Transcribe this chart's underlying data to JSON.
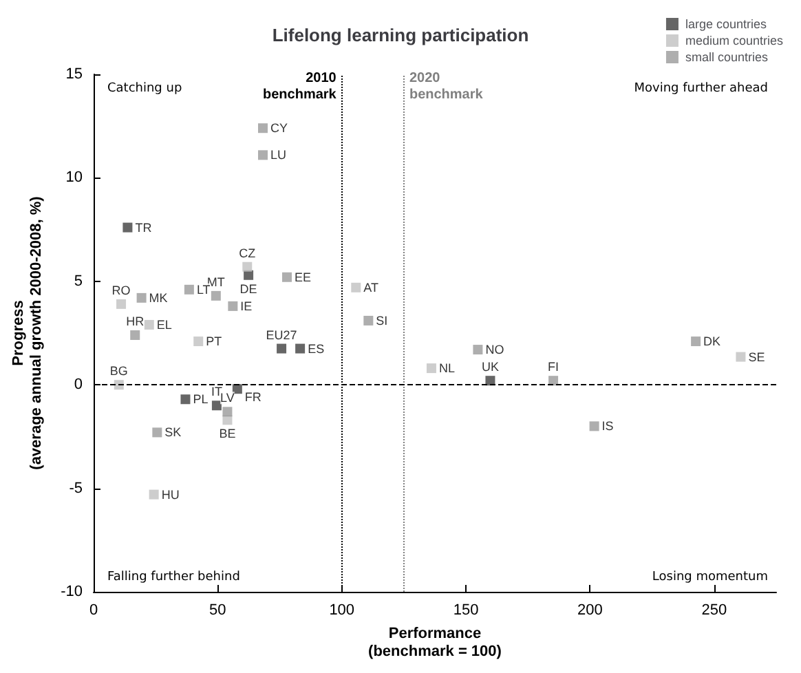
{
  "chart_data": {
    "type": "scatter",
    "title": "Lifelong learning participation",
    "xlabel": "Performance\n(benchmark = 100)",
    "ylabel": "Progress\n(average annual growth 2000-2008, %)",
    "xlim": [
      0,
      275
    ],
    "xticks": [
      0,
      50,
      100,
      150,
      200,
      250
    ],
    "ylim": [
      -10,
      15
    ],
    "yticks": [
      -10,
      -5,
      0,
      5,
      10,
      15
    ],
    "grid": false,
    "legend": "top right",
    "marker": "square",
    "annotations": [
      "Catching up",
      "Moving further ahead",
      "Falling further behind",
      "Losing momentum"
    ],
    "ref_lines": [
      {
        "axis": "x",
        "value": 100,
        "label": "2010\nbenchmark",
        "color": "#000000",
        "line_style": "dotted"
      },
      {
        "axis": "x",
        "value": 125,
        "label": "2020\nbenchmark",
        "color": "#808080",
        "line_style": "dotted"
      },
      {
        "axis": "y",
        "value": 0,
        "label": null,
        "color": "#000000",
        "line_style": "dashed"
      }
    ],
    "series": [
      {
        "name": "large countries",
        "color": "#404040",
        "x": [
          13.7,
          62.4,
          57.9,
          37,
          49.6,
          83.2,
          159.8,
          75.7
        ],
        "values": [
          7.6,
          5.3,
          -0.2,
          -0.7,
          -1.0,
          1.75,
          0.2,
          1.75
        ],
        "value_labels": [
          "TR",
          "DE",
          "FR",
          "PL",
          "IT",
          "ES",
          "UK",
          "EU27"
        ]
      },
      {
        "name": "medium countries",
        "color": "#c0c0c0",
        "x": [
          11.1,
          136.1,
          22.4,
          53.9,
          42.2,
          61.9,
          24.3,
          260.7,
          105.7,
          10.2
        ],
        "values": [
          3.9,
          0.8,
          2.9,
          -1.7,
          2.1,
          5.7,
          -5.3,
          1.35,
          4.7,
          0
        ],
        "value_labels": [
          "RO",
          "NL",
          "EL",
          "BE",
          "PT",
          "CZ",
          "HU",
          "SE",
          "AT",
          "BG"
        ]
      },
      {
        "name": "small countries",
        "color": "#9a9a9a",
        "x": [
          68.2,
          68.2,
          49.3,
          77.9,
          53.9,
          38.5,
          110.7,
          56.1,
          201.7,
          154.8,
          242.6,
          185.2,
          16.7,
          19.3,
          25.6
        ],
        "values": [
          12.4,
          11.1,
          4.3,
          5.2,
          -1.3,
          4.6,
          3.1,
          3.8,
          -2.0,
          1.7,
          2.1,
          0.2,
          2.4,
          4.2,
          -2.3
        ],
        "value_labels": [
          "CY",
          "LU",
          "MT",
          "EE",
          "LV",
          "LT",
          "SI",
          "IE",
          "IS",
          "NO",
          "DK",
          "FI",
          "HR",
          "MK",
          "SK"
        ]
      }
    ]
  }
}
